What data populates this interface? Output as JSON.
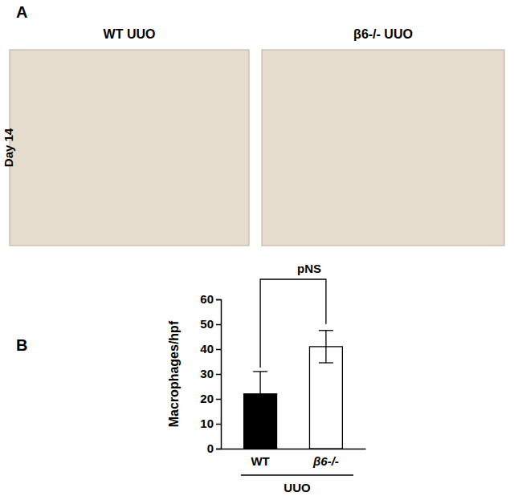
{
  "panel_a": {
    "label": "A",
    "row_label": "Day 14",
    "images": [
      "WT UUO",
      "β6-/- UUO"
    ]
  },
  "chart_data": {
    "type": "bar",
    "panel_label": "B",
    "y_label": "Macrophages/hpf",
    "categories": [
      "WT",
      "β6-/-"
    ],
    "values": [
      22,
      41
    ],
    "errors": [
      9,
      6.5
    ],
    "colors": [
      "#000000",
      "#ffffff"
    ],
    "x_group_label": "UUO",
    "annotations": [
      "pNS"
    ],
    "ylim": [
      0,
      60
    ],
    "yticks": [
      0,
      10,
      20,
      30,
      40,
      50,
      60
    ]
  }
}
